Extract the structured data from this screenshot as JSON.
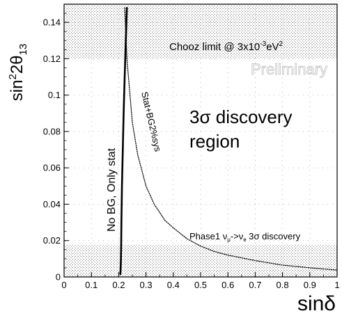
{
  "chart_data": {
    "type": "line",
    "title": "",
    "xlabel": "sinδ",
    "ylabel_parts": {
      "base": "sin",
      "sup": "2",
      "mid": "2θ",
      "sub": "13"
    },
    "xlim": [
      0,
      1
    ],
    "ylim": [
      0,
      0.15
    ],
    "xticks": [
      "0",
      "0.1",
      "0.2",
      "0.3",
      "0.4",
      "0.5",
      "0.6",
      "0.7",
      "0.8",
      "0.9",
      "1"
    ],
    "yticks": [
      "0",
      "0.02",
      "0.04",
      "0.06",
      "0.08",
      "0.1",
      "0.12",
      "0.14"
    ],
    "grid": true,
    "shaded_regions": [
      {
        "name": "chooz-excluded",
        "y_from": 0.12,
        "y_to": 0.15
      },
      {
        "name": "phase1-discovery",
        "y_from": 0,
        "y_to": 0.0175
      }
    ],
    "series": [
      {
        "name": "No BG, Only stat",
        "style": "solid",
        "x": [
          0.206,
          0.207,
          0.208,
          0.209,
          0.21,
          0.212,
          0.215,
          0.218,
          0.222,
          0.226,
          0.23
        ],
        "y": [
          0.0015,
          0.004,
          0.008,
          0.015,
          0.03,
          0.05,
          0.07,
          0.09,
          0.11,
          0.13,
          0.148
        ]
      },
      {
        "name": "Stat+BG2%sys",
        "style": "dotted",
        "x": [
          0.222,
          0.23,
          0.25,
          0.27,
          0.3,
          0.33,
          0.37,
          0.4,
          0.45,
          0.5,
          0.55,
          0.6,
          0.7,
          0.8,
          0.9,
          1.0
        ],
        "y": [
          0.148,
          0.12,
          0.085,
          0.067,
          0.05,
          0.04,
          0.031,
          0.027,
          0.021,
          0.017,
          0.014,
          0.012,
          0.009,
          0.0065,
          0.005,
          0.0038
        ]
      }
    ]
  },
  "annotations": {
    "chooz_base": "Chooz limit @ 3x10",
    "chooz_exp": "-3",
    "chooz_unit": "eV",
    "chooz_unit_exp": "2",
    "preliminary": "Preliminary",
    "discovery_line1": "3σ discovery",
    "discovery_line2": "region",
    "phase1": "Phase1 ν",
    "phase1_sub1": "μ",
    "phase1_arrow": "->ν",
    "phase1_sub2": "e",
    "phase1_tail": " 3σ discovery",
    "curve1_label": "No BG, Only stat",
    "curve2_label": "Stat+BG2%sys"
  },
  "colors": {
    "shade": "#bdbdbd",
    "grid": "#9a9a9a",
    "preliminary": "#c8c8c8",
    "curve": "#000000"
  }
}
